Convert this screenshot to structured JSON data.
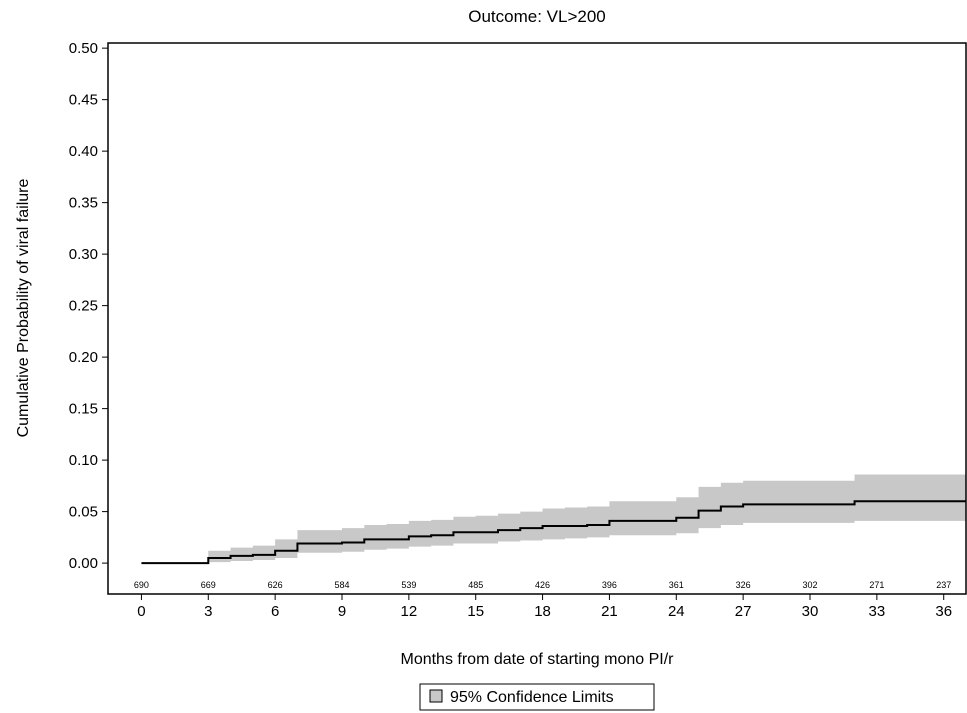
{
  "chart_data": {
    "type": "line",
    "title": "Outcome: VL>200",
    "xlabel": "Months from date of starting mono PI/r",
    "ylabel": "Cumulative Probability of viral failure",
    "xlim": [
      -1.5,
      37
    ],
    "ylim": [
      -0.03,
      0.505
    ],
    "x_ticks": [
      "0",
      "3",
      "6",
      "9",
      "12",
      "15",
      "18",
      "21",
      "24",
      "27",
      "30",
      "33",
      "36"
    ],
    "y_ticks": [
      "0.00",
      "0.05",
      "0.10",
      "0.15",
      "0.20",
      "0.25",
      "0.30",
      "0.35",
      "0.40",
      "0.45",
      "0.50"
    ],
    "series": [
      {
        "kind": "step",
        "x": [
          0,
          3,
          4,
          5,
          6,
          7,
          8,
          9,
          10,
          11,
          12,
          13,
          14,
          15,
          16,
          17,
          18,
          19,
          20,
          21,
          22,
          23,
          24,
          25,
          26,
          27,
          28,
          29,
          30,
          31,
          32,
          33,
          34,
          35,
          36,
          37
        ],
        "y": [
          0.0,
          0.005,
          0.007,
          0.008,
          0.012,
          0.019,
          0.019,
          0.02,
          0.023,
          0.023,
          0.026,
          0.027,
          0.03,
          0.03,
          0.032,
          0.034,
          0.036,
          0.036,
          0.037,
          0.041,
          0.041,
          0.041,
          0.044,
          0.051,
          0.055,
          0.057,
          0.057,
          0.057,
          0.057,
          0.057,
          0.06,
          0.06,
          0.06,
          0.06,
          0.06,
          0.06
        ]
      },
      {
        "name": "95% Confidence Limits",
        "kind": "band",
        "x": [
          0,
          3,
          4,
          5,
          6,
          7,
          8,
          9,
          10,
          11,
          12,
          13,
          14,
          15,
          16,
          17,
          18,
          19,
          20,
          21,
          22,
          23,
          24,
          25,
          26,
          27,
          28,
          29,
          30,
          31,
          32,
          33,
          34,
          35,
          36,
          37
        ],
        "lower": [
          0.0,
          0.001,
          0.002,
          0.003,
          0.005,
          0.01,
          0.01,
          0.011,
          0.013,
          0.014,
          0.016,
          0.017,
          0.019,
          0.019,
          0.021,
          0.022,
          0.023,
          0.024,
          0.025,
          0.027,
          0.027,
          0.027,
          0.029,
          0.034,
          0.037,
          0.039,
          0.039,
          0.039,
          0.039,
          0.039,
          0.041,
          0.041,
          0.041,
          0.041,
          0.041,
          0.041
        ],
        "upper": [
          0.0,
          0.012,
          0.015,
          0.017,
          0.023,
          0.032,
          0.032,
          0.034,
          0.037,
          0.038,
          0.041,
          0.042,
          0.045,
          0.046,
          0.048,
          0.05,
          0.053,
          0.054,
          0.055,
          0.06,
          0.06,
          0.06,
          0.064,
          0.074,
          0.078,
          0.08,
          0.08,
          0.08,
          0.08,
          0.08,
          0.086,
          0.086,
          0.086,
          0.086,
          0.086,
          0.086
        ]
      }
    ],
    "at_risk": {
      "x": [
        0,
        3,
        6,
        9,
        12,
        15,
        18,
        21,
        24,
        27,
        30,
        33,
        36
      ],
      "counts": [
        "690",
        "669",
        "626",
        "584",
        "539",
        "485",
        "426",
        "396",
        "361",
        "326",
        "302",
        "271",
        "237"
      ]
    },
    "legend": {
      "placement": "bottom-center",
      "label": "95% Confidence Limits"
    },
    "grid": false,
    "colors": {
      "band": "#c8c8c8",
      "line": "#000000",
      "axes": "#000000"
    }
  }
}
